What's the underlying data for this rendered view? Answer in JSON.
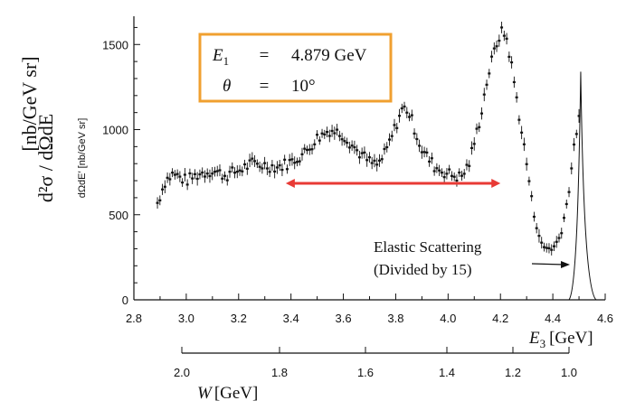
{
  "chart_data": {
    "type": "scatter",
    "x_axis": {
      "label_symbol": "E",
      "label_subscript": "3",
      "label_unit": "[GeV]",
      "range": [
        2.8,
        4.6
      ],
      "ticks": [
        "2.8",
        "3.0",
        "3.2",
        "3.4",
        "3.6",
        "3.8",
        "4.0",
        "4.2",
        "4.4",
        "4.6"
      ]
    },
    "y_axis": {
      "label_main": "d²σ / dΩdE",
      "label_unit": "[nb/GeV sr]",
      "label_small": "dΩdE′ [nb/GeV sr]",
      "range": [
        0,
        1650
      ],
      "ticks": [
        "0",
        "500",
        "1000",
        "1500"
      ]
    },
    "w_axis": {
      "label_symbol": "W",
      "label_unit": "[GeV]",
      "ticks": [
        "2.0",
        "1.8",
        "1.6",
        "1.4",
        "1.2",
        "1.0"
      ]
    },
    "kinematics": {
      "e1_symbol": "E",
      "e1_subscript": "1",
      "e1_eq": "=",
      "e1_value": "4.879 GeV",
      "theta_symbol": "θ",
      "theta_eq": "=",
      "theta_value": "10°"
    },
    "elastic_label_line1": "Elastic Scattering",
    "elastic_label_line2": "(Divided by 15)",
    "highlight_arrow_range": [
      3.38,
      4.2
    ],
    "elastic_peak": {
      "x": 4.51,
      "ymax": 1340
    },
    "anchors": [
      [
        2.89,
        570
      ],
      [
        2.92,
        700
      ],
      [
        2.95,
        740
      ],
      [
        3.0,
        700
      ],
      [
        3.05,
        740
      ],
      [
        3.1,
        760
      ],
      [
        3.15,
        730
      ],
      [
        3.2,
        760
      ],
      [
        3.25,
        800
      ],
      [
        3.3,
        790
      ],
      [
        3.35,
        780
      ],
      [
        3.4,
        810
      ],
      [
        3.45,
        860
      ],
      [
        3.5,
        950
      ],
      [
        3.55,
        1000
      ],
      [
        3.6,
        970
      ],
      [
        3.65,
        880
      ],
      [
        3.7,
        810
      ],
      [
        3.73,
        790
      ],
      [
        3.76,
        860
      ],
      [
        3.8,
        1020
      ],
      [
        3.82,
        1110
      ],
      [
        3.84,
        1130
      ],
      [
        3.86,
        1060
      ],
      [
        3.9,
        880
      ],
      [
        3.95,
        780
      ],
      [
        4.0,
        740
      ],
      [
        4.05,
        720
      ],
      [
        4.08,
        800
      ],
      [
        4.12,
        1050
      ],
      [
        4.15,
        1300
      ],
      [
        4.18,
        1480
      ],
      [
        4.2,
        1570
      ],
      [
        4.22,
        1560
      ],
      [
        4.24,
        1400
      ],
      [
        4.27,
        1100
      ],
      [
        4.3,
        800
      ],
      [
        4.33,
        480
      ],
      [
        4.36,
        310
      ],
      [
        4.4,
        300
      ],
      [
        4.43,
        380
      ],
      [
        4.46,
        620
      ],
      [
        4.48,
        890
      ],
      [
        4.5,
        1070
      ]
    ],
    "colors": {
      "box": "#f0a030",
      "arrow": "#e83a35",
      "ink": "#111111"
    }
  }
}
